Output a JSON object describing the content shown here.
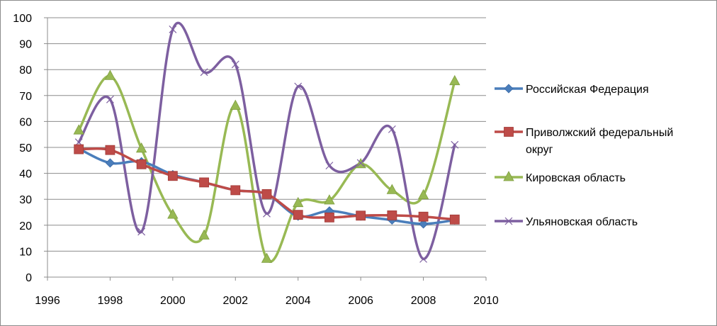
{
  "chart_data": {
    "type": "line",
    "title": "",
    "xlabel": "",
    "ylabel": "",
    "xlim": [
      1996,
      2010
    ],
    "ylim": [
      0,
      100
    ],
    "x_ticks": [
      1996,
      1998,
      2000,
      2002,
      2004,
      2006,
      2008,
      2010
    ],
    "y_ticks": [
      0,
      10,
      20,
      30,
      40,
      50,
      60,
      70,
      80,
      90,
      100
    ],
    "grid": "horizontal",
    "smooth": true,
    "legend_position": "right",
    "x": [
      1997,
      1998,
      1999,
      2000,
      2001,
      2002,
      2003,
      2004,
      2005,
      2006,
      2007,
      2008,
      2009
    ],
    "series": [
      {
        "name": "Российская Федерация",
        "color": "#4a7ebb",
        "marker": "diamond",
        "values": [
          49.5,
          44,
          44.5,
          39.5,
          36.5,
          33.5,
          32,
          23.5,
          25.5,
          23.5,
          22,
          20.5,
          22
        ]
      },
      {
        "name": "Приволжский федеральный округ",
        "legend_lines": [
          "Приволжский федеральный",
          "округ"
        ],
        "color": "#be4b48",
        "marker": "square",
        "values": [
          49.3,
          49,
          43.5,
          39,
          36.5,
          33.5,
          32,
          24,
          23,
          23.7,
          23.8,
          23.3,
          22.2
        ]
      },
      {
        "name": "Кировская область",
        "color": "#98b954",
        "marker": "triangle",
        "values": [
          56.5,
          77.5,
          49.5,
          24,
          16,
          66,
          7,
          28.5,
          29.5,
          43.5,
          33.5,
          31.5,
          75.5
        ]
      },
      {
        "name": "Ульяновская область",
        "color": "#7d5fa0",
        "marker": "x",
        "values": [
          52,
          68.5,
          17.5,
          95.5,
          79,
          82,
          24.5,
          73.5,
          43,
          44,
          57,
          7,
          51
        ]
      }
    ]
  }
}
